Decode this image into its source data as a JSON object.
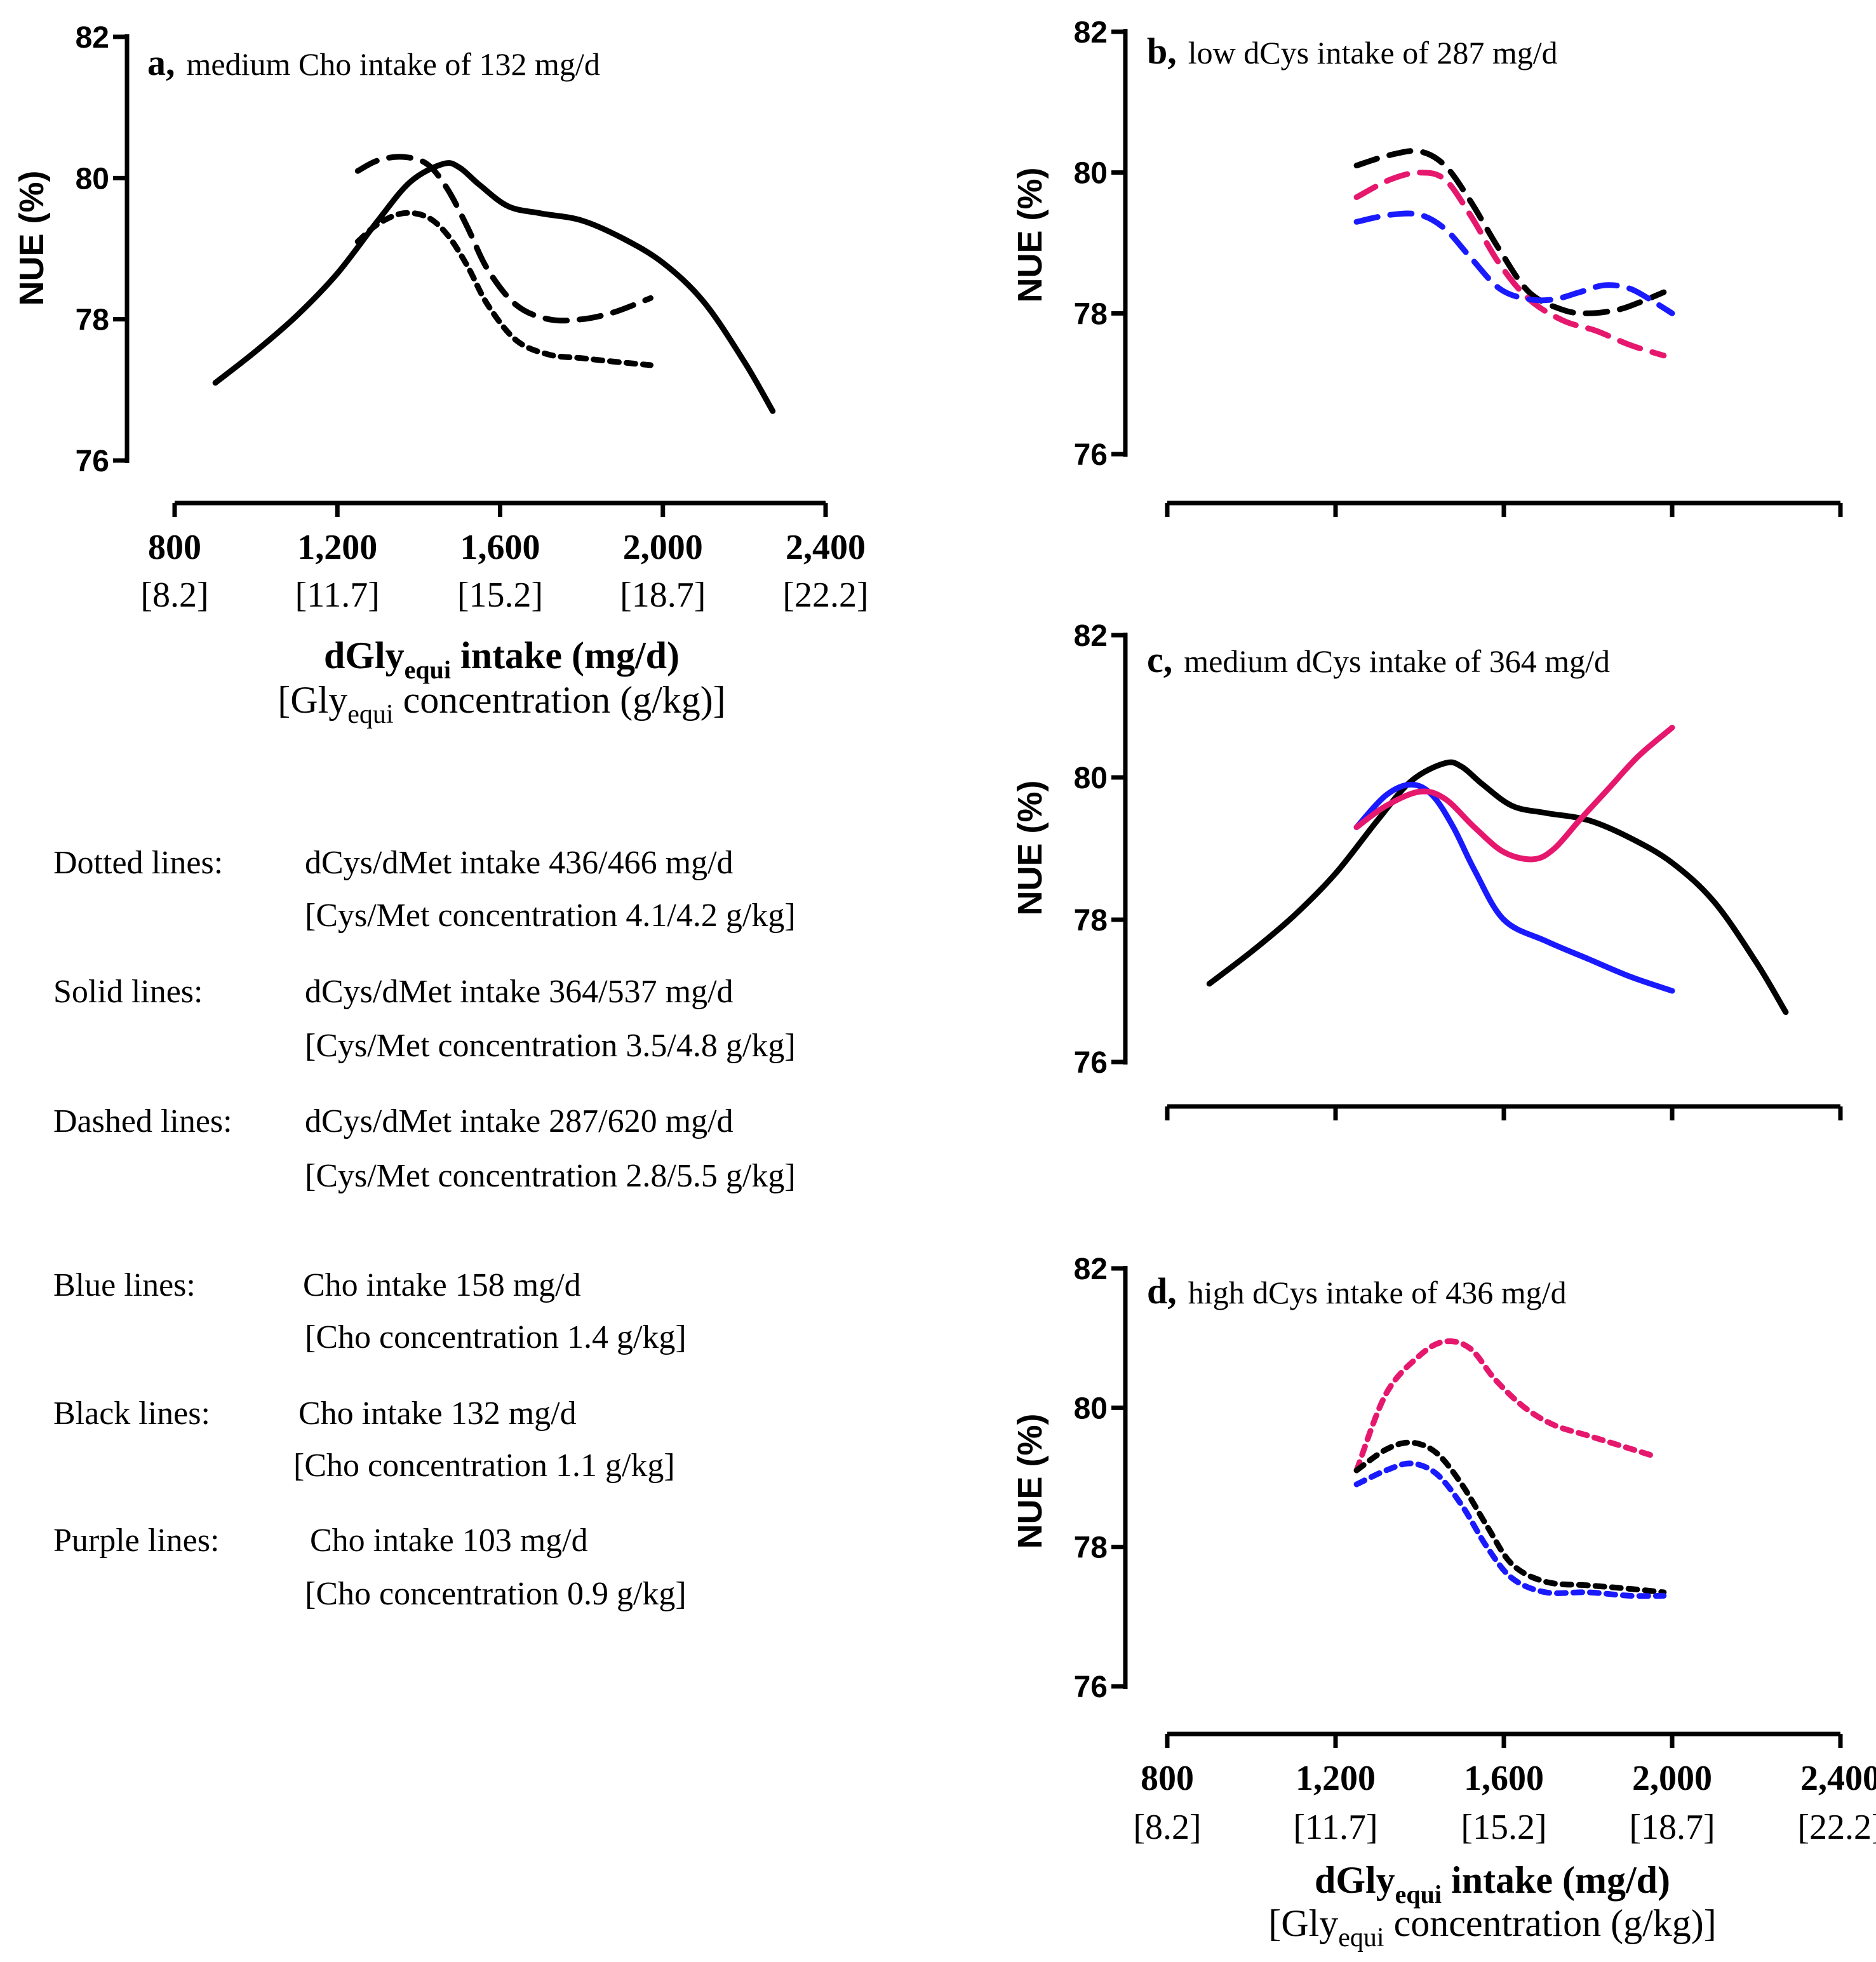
{
  "colors": {
    "black": "#000000",
    "blue": "#1a1aff",
    "purple": "#e6186e"
  },
  "shared_axis": {
    "x_ticks": [
      800,
      1200,
      1600,
      2000,
      2400
    ],
    "x_tick_labels": [
      "800",
      "1,200",
      "1,600",
      "2,000",
      "2,400"
    ],
    "x_conc_labels": [
      "[8.2]",
      "[11.7]",
      "[15.2]",
      "[18.7]",
      "[22.2]"
    ],
    "x_range": [
      800,
      2400
    ],
    "y_ticks": [
      76,
      78,
      80,
      82
    ],
    "y_tick_labels": [
      "76",
      "78",
      "80",
      "82"
    ],
    "y_range": [
      76,
      82
    ],
    "ylabel": "NUE (%)",
    "xlabel_main": "dGly",
    "xlabel_sub": "equi",
    "xlabel_rest": " intake (mg/d)",
    "xlabel2_open": "[Gly",
    "xlabel2_sub": "equi",
    "xlabel2_rest": " concentration (g/kg)]"
  },
  "chart_data": [
    {
      "type": "line",
      "panel": "a",
      "letter": "a,",
      "title": "medium Cho intake of 132 mg/d",
      "xlabel": "dGly equi intake (mg/d) [Gly equi concentration (g/kg)]",
      "ylabel": "NUE (%)",
      "xlim": [
        800,
        2400
      ],
      "ylim": [
        76,
        82
      ],
      "series": [
        {
          "name": "Solid black",
          "color": "black",
          "style": "solid",
          "x": [
            900,
            1000,
            1100,
            1200,
            1300,
            1380,
            1460,
            1500,
            1550,
            1620,
            1700,
            1800,
            1900,
            2000,
            2100,
            2200,
            2270
          ],
          "y": [
            77.1,
            77.55,
            78.05,
            78.65,
            79.4,
            79.95,
            80.2,
            80.15,
            79.9,
            79.6,
            79.5,
            79.4,
            79.15,
            78.8,
            78.25,
            77.4,
            76.7
          ]
        },
        {
          "name": "Dashed black",
          "color": "black",
          "style": "dashed",
          "x": [
            1250,
            1300,
            1360,
            1420,
            1470,
            1520,
            1570,
            1640,
            1720,
            1800,
            1880,
            1970
          ],
          "y": [
            80.1,
            80.25,
            80.3,
            80.2,
            79.85,
            79.3,
            78.7,
            78.2,
            78.0,
            78.0,
            78.1,
            78.3
          ]
        },
        {
          "name": "Dotted black",
          "color": "black",
          "style": "dotted",
          "x": [
            1250,
            1300,
            1360,
            1420,
            1470,
            1520,
            1570,
            1640,
            1720,
            1800,
            1880,
            1970
          ],
          "y": [
            79.1,
            79.35,
            79.5,
            79.45,
            79.2,
            78.75,
            78.2,
            77.7,
            77.5,
            77.45,
            77.4,
            77.35
          ]
        }
      ]
    },
    {
      "type": "line",
      "panel": "b",
      "letter": "b,",
      "title": "low dCys intake of 287 mg/d",
      "ylabel": "NUE (%)",
      "xlim": [
        800,
        2400
      ],
      "ylim": [
        76,
        82
      ],
      "series": [
        {
          "name": "Dashed black",
          "color": "black",
          "style": "dashed",
          "x": [
            1250,
            1330,
            1400,
            1460,
            1520,
            1590,
            1660,
            1740,
            1800,
            1870,
            1920,
            1980
          ],
          "y": [
            80.1,
            80.25,
            80.3,
            80.1,
            79.6,
            78.9,
            78.3,
            78.05,
            78.0,
            78.05,
            78.15,
            78.3
          ]
        },
        {
          "name": "Dashed purple",
          "color": "purple",
          "style": "dashed",
          "x": [
            1250,
            1330,
            1400,
            1460,
            1520,
            1590,
            1660,
            1740,
            1820,
            1900,
            1980
          ],
          "y": [
            79.65,
            79.9,
            80.0,
            79.9,
            79.4,
            78.7,
            78.2,
            77.9,
            77.75,
            77.55,
            77.4
          ]
        },
        {
          "name": "Dashed blue",
          "color": "blue",
          "style": "dashed",
          "x": [
            1250,
            1330,
            1400,
            1460,
            1520,
            1590,
            1660,
            1720,
            1780,
            1840,
            1900,
            1960,
            2000
          ],
          "y": [
            79.3,
            79.4,
            79.4,
            79.2,
            78.8,
            78.35,
            78.2,
            78.2,
            78.3,
            78.4,
            78.35,
            78.15,
            78.0
          ]
        }
      ]
    },
    {
      "type": "line",
      "panel": "c",
      "letter": "c,",
      "title": "medium dCys intake of 364 mg/d",
      "ylabel": "NUE (%)",
      "xlim": [
        800,
        2400
      ],
      "ylim": [
        76,
        82
      ],
      "series": [
        {
          "name": "Solid black",
          "color": "black",
          "style": "solid",
          "x": [
            900,
            1000,
            1100,
            1200,
            1300,
            1380,
            1460,
            1500,
            1550,
            1620,
            1700,
            1800,
            1900,
            2000,
            2100,
            2200,
            2270
          ],
          "y": [
            77.1,
            77.55,
            78.05,
            78.65,
            79.4,
            79.95,
            80.2,
            80.15,
            79.9,
            79.6,
            79.5,
            79.4,
            79.15,
            78.8,
            78.25,
            77.4,
            76.7
          ]
        },
        {
          "name": "Solid blue",
          "color": "blue",
          "style": "solid",
          "x": [
            1250,
            1320,
            1380,
            1430,
            1480,
            1530,
            1600,
            1700,
            1800,
            1900,
            2000
          ],
          "y": [
            79.3,
            79.75,
            79.9,
            79.75,
            79.3,
            78.7,
            78.0,
            77.7,
            77.45,
            77.2,
            77.0
          ]
        },
        {
          "name": "Solid purple",
          "color": "purple",
          "style": "solid",
          "x": [
            1250,
            1320,
            1400,
            1460,
            1530,
            1600,
            1670,
            1720,
            1780,
            1850,
            1920,
            2000
          ],
          "y": [
            79.3,
            79.6,
            79.8,
            79.7,
            79.3,
            78.95,
            78.85,
            79.0,
            79.4,
            79.85,
            80.3,
            80.7
          ]
        }
      ]
    },
    {
      "type": "line",
      "panel": "d",
      "letter": "d,",
      "title": "high dCys intake of 436 mg/d",
      "xlabel": "dGly equi intake (mg/d) [Gly equi concentration (g/kg)]",
      "ylabel": "NUE (%)",
      "xlim": [
        800,
        2400
      ],
      "ylim": [
        76,
        82
      ],
      "series": [
        {
          "name": "Dotted purple",
          "color": "purple",
          "style": "dotted",
          "x": [
            1250,
            1320,
            1400,
            1460,
            1520,
            1580,
            1650,
            1720,
            1800,
            1880,
            1960
          ],
          "y": [
            79.1,
            80.2,
            80.75,
            80.95,
            80.85,
            80.4,
            80.0,
            79.75,
            79.6,
            79.45,
            79.3
          ]
        },
        {
          "name": "Dotted black",
          "color": "black",
          "style": "dotted",
          "x": [
            1250,
            1320,
            1380,
            1440,
            1500,
            1560,
            1620,
            1700,
            1800,
            1900,
            1980
          ],
          "y": [
            79.1,
            79.4,
            79.5,
            79.35,
            78.9,
            78.3,
            77.75,
            77.5,
            77.45,
            77.4,
            77.35
          ]
        },
        {
          "name": "Dotted blue",
          "color": "blue",
          "style": "dotted",
          "x": [
            1250,
            1320,
            1380,
            1440,
            1500,
            1560,
            1620,
            1700,
            1800,
            1900,
            1980
          ],
          "y": [
            78.9,
            79.1,
            79.2,
            79.05,
            78.6,
            78.0,
            77.55,
            77.35,
            77.35,
            77.3,
            77.3
          ]
        }
      ]
    }
  ],
  "legend": [
    {
      "label": "Dotted lines:",
      "line1": "dCys/dMet intake 436/466 mg/d",
      "line2": "[Cys/Met concentration 4.1/4.2 g/kg]"
    },
    {
      "label": "Solid lines:",
      "line1": "dCys/dMet intake 364/537 mg/d",
      "line2": "[Cys/Met concentration 3.5/4.8 g/kg]"
    },
    {
      "label": "Dashed lines:",
      "line1": "dCys/dMet intake 287/620 mg/d",
      "line2": "[Cys/Met concentration 2.8/5.5 g/kg]"
    },
    {
      "label": "Blue lines:",
      "line1": "Cho intake 158 mg/d",
      "line2": "[Cho concentration 1.4 g/kg]"
    },
    {
      "label": "Black lines:",
      "line1": "Cho intake 132 mg/d",
      "line2": "[Cho concentration 1.1 g/kg]"
    },
    {
      "label": "Purple lines:",
      "line1": "Cho intake 103 mg/d",
      "line2": "[Cho concentration 0.9 g/kg]"
    }
  ]
}
